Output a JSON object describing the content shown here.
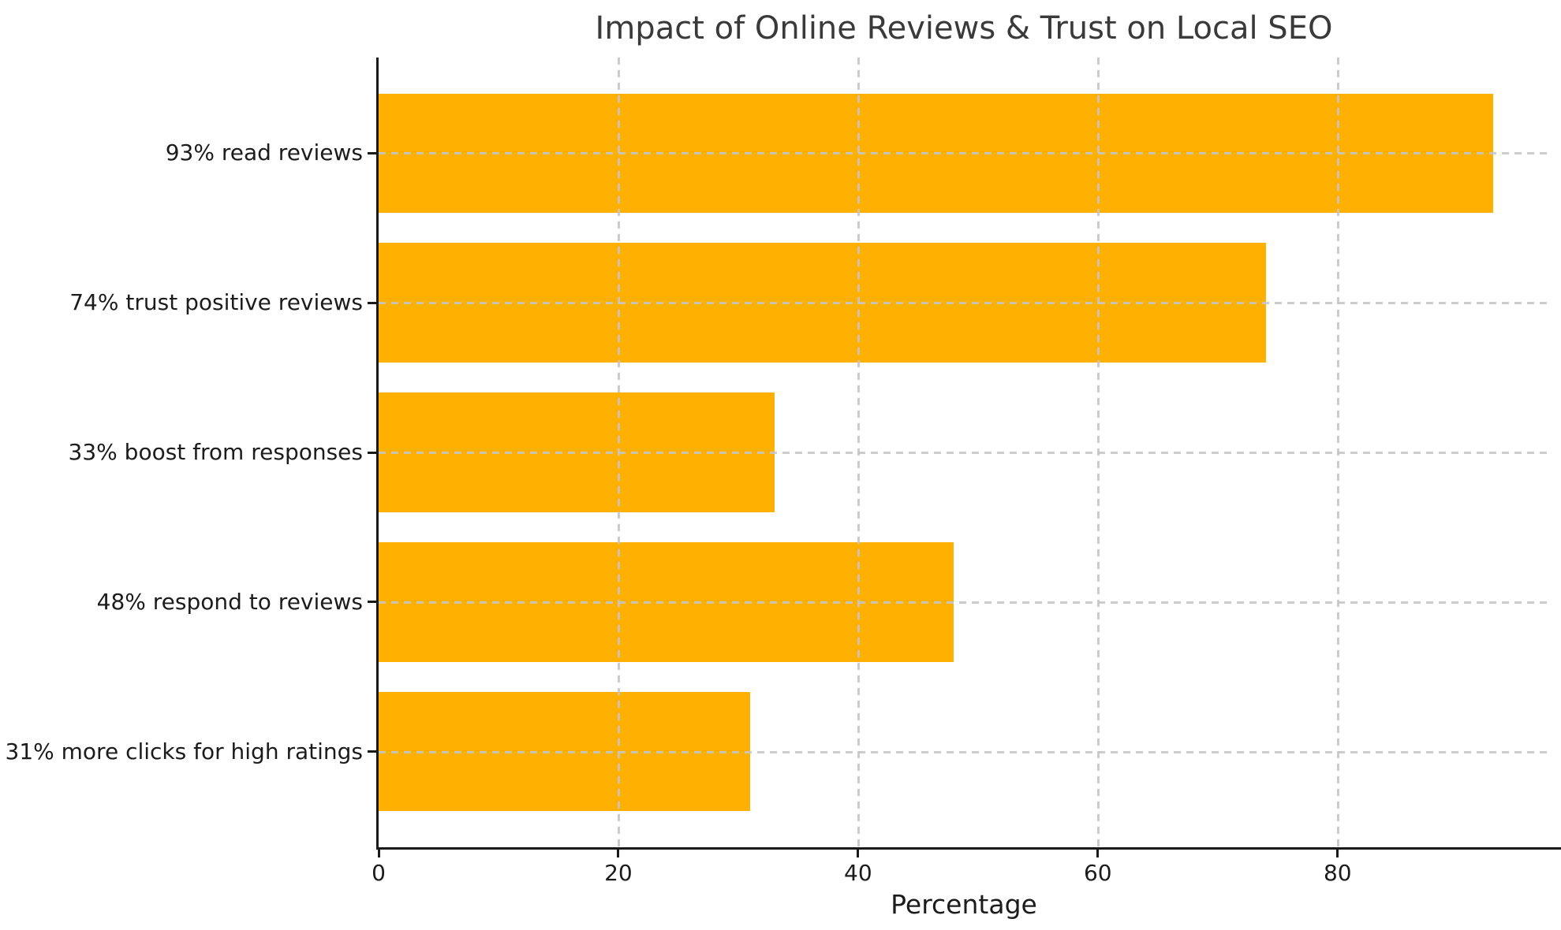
{
  "chart_data": {
    "type": "bar",
    "orientation": "horizontal",
    "title": "Impact of Online Reviews & Trust on Local SEO",
    "xlabel": "Percentage",
    "ylabel": "",
    "categories": [
      "93% read reviews",
      "74% trust positive reviews",
      "33% boost from responses",
      "48% respond to reviews",
      "31% more clicks for high ratings"
    ],
    "values": [
      93,
      74,
      33,
      48,
      31
    ],
    "x_ticks": [
      0,
      20,
      40,
      60,
      80
    ],
    "xlim": [
      0,
      97.65
    ],
    "legend": "none",
    "grid": {
      "style": "dashed",
      "axes": "both",
      "color": "#c6c6c6",
      "over_bars": true
    },
    "colors": {
      "bar": "#FFB000",
      "spine": "#1a1a1a",
      "tick_text": "#1c1c1c",
      "title_text": "#3a3a3a",
      "background": "#ffffff"
    },
    "layout": {
      "y_pad_units": 0.64,
      "bar_height_units": 0.8
    }
  }
}
